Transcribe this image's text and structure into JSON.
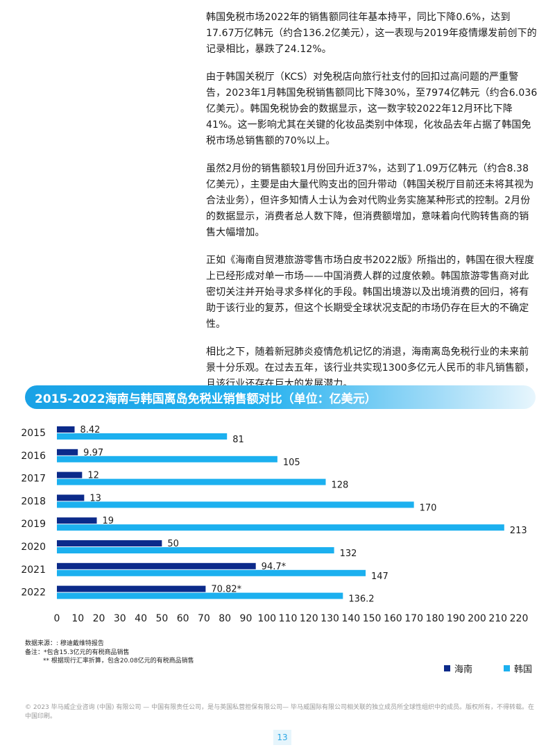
{
  "article": {
    "paragraphs": [
      "韩国免税市场2022年的销售额同往年基本持平，同比下降0.6%，达到17.67万亿韩元（约合136.2亿美元），这一表现与2019年疫情爆发前创下的记录相比，暴跌了24.12%。",
      "由于韩国关税厅（KCS）对免税店向旅行社支付的回扣过高问题的严重警告，2023年1月韩国免税销售额同比下降30%，至7974亿韩元（约合6.036亿美元）。韩国免税协会的数据显示，这一数字较2022年12月环比下降41%。这一影响尤其在关键的化妆品类别中体现，化妆品去年占据了韩国免税市场总销售额的70%以上。",
      "虽然2月份的销售额较1月份回升近37%，达到了1.09万亿韩元（约合8.38亿美元），主要是由大量代购支出的回升带动（韩国关税厅目前还未将其视为合法业务），但许多知情人士认为会对代购业务实施某种形式的控制。2月份的数据显示，消费者总人数下降，但消费额增加，意味着向代购转售商的销售大幅增加。",
      "正如《海南自贸港旅游零售市场白皮书2022版》所指出的，韩国在很大程度上已经形成对单一市场——中国消费人群的过度依赖。韩国旅游零售商对此密切关注并开始寻求多样化的手段。韩国出境游以及出境消费的回归，将有助于该行业的复苏，但这个长期受全球状况支配的市场仍存在巨大的不确定性。",
      "相比之下，随着新冠肺炎疫情危机记忆的消退，海南离岛免税行业的未来前景十分乐观。在过去五年，该行业共实现1300多亿元人民币的非凡销售额，且该行业还存在巨大的发展潜力。"
    ]
  },
  "chart_data": {
    "type": "bar",
    "orientation": "horizontal",
    "title": "2015-2022海南与韩国离岛免税业销售额对比（单位：亿美元）",
    "categories": [
      "2015",
      "2016",
      "2017",
      "2018",
      "2019",
      "2020",
      "2021",
      "2022"
    ],
    "series": [
      {
        "name": "海南",
        "color": "#0b2a8a",
        "values": [
          8.42,
          9.97,
          12,
          13,
          19,
          50,
          94.7,
          70.82
        ],
        "labels": [
          "8.42",
          "9.97",
          "12",
          "13",
          "19",
          "50",
          "94.7*",
          "70.82*"
        ]
      },
      {
        "name": "韩国",
        "color": "#1cb0ef",
        "values": [
          81,
          105,
          128,
          170,
          213,
          132,
          147,
          136.2
        ],
        "labels": [
          "81",
          "105",
          "128",
          "170",
          "213",
          "132",
          "147",
          "136.2"
        ]
      }
    ],
    "xlim": [
      0,
      220
    ],
    "xticks": [
      "0",
      "10",
      "20",
      "30",
      "40",
      "50",
      "60",
      "70",
      "80",
      "90",
      "100",
      "110",
      "120",
      "130",
      "140",
      "150",
      "160",
      "170",
      "180",
      "190",
      "200",
      "210",
      "220"
    ],
    "grid": false,
    "legend": "bottom-right"
  },
  "notes": {
    "source": "数据来源：: 穆迪戴维特报告",
    "note1": "备注：*包含15.3亿元的有税商品销售",
    "note2": "** 根据现行汇率折算，包含20.08亿元的有税商品销售"
  },
  "footer": {
    "copyright": "© 2023 毕马威企业咨询 (中国) 有限公司 — 中国有限责任公司，是与英国私营担保有限公司— 毕马威国际有限公司相关联的独立成员所全球性组织中的成员。版权所有，不得转载。在中国印刷。",
    "page_number": "13"
  }
}
